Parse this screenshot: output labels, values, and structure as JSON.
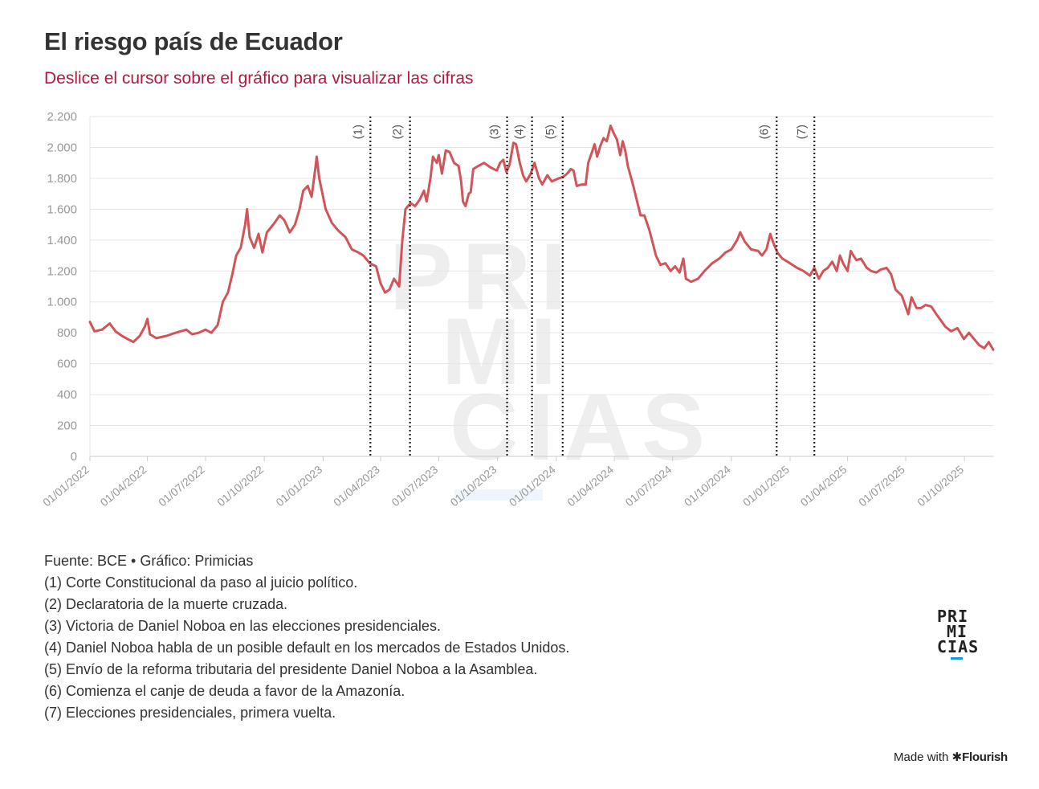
{
  "title": "El riesgo país de Ecuador",
  "subtitle": "Deslice el cursor sobre el gráfico para visualizar las cifras",
  "colors": {
    "line": "#d0545a",
    "subtitle": "#b5183f",
    "accent": "#1e9ad6",
    "grid": "#e6e6e6",
    "watermark": "#eeeeee"
  },
  "watermark": [
    "PRI",
    "MI",
    "CIAS"
  ],
  "chart_data": {
    "type": "line",
    "title": "El riesgo país de Ecuador",
    "xlabel": "",
    "ylabel": "",
    "ylim": [
      0,
      2200
    ],
    "xlim": [
      "2022-01-01",
      "2025-11-15"
    ],
    "y_ticks": [
      0,
      200,
      400,
      600,
      800,
      1000,
      1200,
      1400,
      1600,
      1800,
      2000,
      2200
    ],
    "y_tick_labels": [
      "0",
      "200",
      "400",
      "600",
      "800",
      "1.000",
      "1.200",
      "1.400",
      "1.600",
      "1.800",
      "2.000",
      "2.200"
    ],
    "x_ticks": [
      "2022-01-01",
      "2022-04-01",
      "2022-07-01",
      "2022-10-01",
      "2023-01-01",
      "2023-04-01",
      "2023-07-01",
      "2023-10-01",
      "2024-01-01",
      "2024-04-01",
      "2024-07-01",
      "2024-10-01",
      "2025-01-01",
      "2025-04-01",
      "2025-07-01",
      "2025-10-01"
    ],
    "x_tick_labels": [
      "01/01/2022",
      "01/04/2022",
      "01/07/2022",
      "01/10/2022",
      "01/01/2023",
      "01/04/2023",
      "01/07/2023",
      "01/10/2023",
      "01/01/2024",
      "01/04/2024",
      "01/07/2024",
      "01/10/2024",
      "01/01/2025",
      "01/04/2025",
      "01/07/2025",
      "01/10/2025"
    ],
    "grid": true,
    "legend": "none",
    "series": [
      {
        "name": "Riesgo país",
        "points": [
          [
            "2022-01-01",
            870
          ],
          [
            "2022-01-08",
            810
          ],
          [
            "2022-01-20",
            820
          ],
          [
            "2022-02-01",
            860
          ],
          [
            "2022-02-10",
            810
          ],
          [
            "2022-02-20",
            780
          ],
          [
            "2022-03-01",
            760
          ],
          [
            "2022-03-10",
            740
          ],
          [
            "2022-03-20",
            780
          ],
          [
            "2022-03-28",
            840
          ],
          [
            "2022-04-01",
            890
          ],
          [
            "2022-04-05",
            790
          ],
          [
            "2022-04-15",
            765
          ],
          [
            "2022-05-01",
            780
          ],
          [
            "2022-05-15",
            800
          ],
          [
            "2022-06-01",
            820
          ],
          [
            "2022-06-10",
            790
          ],
          [
            "2022-06-20",
            800
          ],
          [
            "2022-07-01",
            820
          ],
          [
            "2022-07-10",
            800
          ],
          [
            "2022-07-20",
            850
          ],
          [
            "2022-07-28",
            1000
          ],
          [
            "2022-08-05",
            1060
          ],
          [
            "2022-08-12",
            1180
          ],
          [
            "2022-08-18",
            1300
          ],
          [
            "2022-08-25",
            1350
          ],
          [
            "2022-09-01",
            1500
          ],
          [
            "2022-09-04",
            1600
          ],
          [
            "2022-09-08",
            1420
          ],
          [
            "2022-09-15",
            1350
          ],
          [
            "2022-09-22",
            1440
          ],
          [
            "2022-09-28",
            1320
          ],
          [
            "2022-10-05",
            1450
          ],
          [
            "2022-10-15",
            1500
          ],
          [
            "2022-10-25",
            1560
          ],
          [
            "2022-11-01",
            1530
          ],
          [
            "2022-11-10",
            1450
          ],
          [
            "2022-11-18",
            1500
          ],
          [
            "2022-11-25",
            1600
          ],
          [
            "2022-12-01",
            1720
          ],
          [
            "2022-12-08",
            1750
          ],
          [
            "2022-12-14",
            1680
          ],
          [
            "2022-12-20",
            1870
          ],
          [
            "2022-12-22",
            1940
          ],
          [
            "2022-12-26",
            1800
          ],
          [
            "2023-01-05",
            1600
          ],
          [
            "2023-01-15",
            1510
          ],
          [
            "2023-01-25",
            1460
          ],
          [
            "2023-02-05",
            1420
          ],
          [
            "2023-02-15",
            1340
          ],
          [
            "2023-02-25",
            1320
          ],
          [
            "2023-03-05",
            1300
          ],
          [
            "2023-03-15",
            1250
          ],
          [
            "2023-03-25",
            1230
          ],
          [
            "2023-04-01",
            1120
          ],
          [
            "2023-04-08",
            1060
          ],
          [
            "2023-04-15",
            1080
          ],
          [
            "2023-04-22",
            1150
          ],
          [
            "2023-04-30",
            1100
          ],
          [
            "2023-05-05",
            1400
          ],
          [
            "2023-05-10",
            1600
          ],
          [
            "2023-05-18",
            1640
          ],
          [
            "2023-05-25",
            1620
          ],
          [
            "2023-06-01",
            1660
          ],
          [
            "2023-06-08",
            1720
          ],
          [
            "2023-06-12",
            1650
          ],
          [
            "2023-06-18",
            1800
          ],
          [
            "2023-06-22",
            1940
          ],
          [
            "2023-06-28",
            1900
          ],
          [
            "2023-07-01",
            1950
          ],
          [
            "2023-07-06",
            1830
          ],
          [
            "2023-07-12",
            1980
          ],
          [
            "2023-07-18",
            1970
          ],
          [
            "2023-07-25",
            1900
          ],
          [
            "2023-08-01",
            1880
          ],
          [
            "2023-08-05",
            1780
          ],
          [
            "2023-08-08",
            1650
          ],
          [
            "2023-08-12",
            1620
          ],
          [
            "2023-08-17",
            1700
          ],
          [
            "2023-08-20",
            1710
          ],
          [
            "2023-08-24",
            1860
          ],
          [
            "2023-09-01",
            1880
          ],
          [
            "2023-09-10",
            1900
          ],
          [
            "2023-09-20",
            1870
          ],
          [
            "2023-09-30",
            1850
          ],
          [
            "2023-10-05",
            1900
          ],
          [
            "2023-10-10",
            1920
          ],
          [
            "2023-10-15",
            1840
          ],
          [
            "2023-10-20",
            1890
          ],
          [
            "2023-10-26",
            2030
          ],
          [
            "2023-10-30",
            2020
          ],
          [
            "2023-11-05",
            1900
          ],
          [
            "2023-11-10",
            1820
          ],
          [
            "2023-11-15",
            1780
          ],
          [
            "2023-11-22",
            1830
          ],
          [
            "2023-11-28",
            1900
          ],
          [
            "2023-12-05",
            1800
          ],
          [
            "2023-12-10",
            1760
          ],
          [
            "2023-12-18",
            1820
          ],
          [
            "2023-12-25",
            1780
          ],
          [
            "2024-01-05",
            1800
          ],
          [
            "2024-01-12",
            1810
          ],
          [
            "2024-01-18",
            1830
          ],
          [
            "2024-01-24",
            1860
          ],
          [
            "2024-01-28",
            1850
          ],
          [
            "2024-02-02",
            1750
          ],
          [
            "2024-02-10",
            1760
          ],
          [
            "2024-02-16",
            1760
          ],
          [
            "2024-02-20",
            1900
          ],
          [
            "2024-02-25",
            1960
          ],
          [
            "2024-03-01",
            2020
          ],
          [
            "2024-03-05",
            1940
          ],
          [
            "2024-03-10",
            2010
          ],
          [
            "2024-03-15",
            2060
          ],
          [
            "2024-03-20",
            2040
          ],
          [
            "2024-03-26",
            2140
          ],
          [
            "2024-03-30",
            2100
          ],
          [
            "2024-04-05",
            2050
          ],
          [
            "2024-04-10",
            1950
          ],
          [
            "2024-04-14",
            2040
          ],
          [
            "2024-04-18",
            1980
          ],
          [
            "2024-04-22",
            1880
          ],
          [
            "2024-04-30",
            1760
          ],
          [
            "2024-05-06",
            1660
          ],
          [
            "2024-05-12",
            1560
          ],
          [
            "2024-05-18",
            1560
          ],
          [
            "2024-05-26",
            1460
          ],
          [
            "2024-06-05",
            1300
          ],
          [
            "2024-06-12",
            1240
          ],
          [
            "2024-06-20",
            1250
          ],
          [
            "2024-06-28",
            1200
          ],
          [
            "2024-07-05",
            1230
          ],
          [
            "2024-07-12",
            1190
          ],
          [
            "2024-07-18",
            1280
          ],
          [
            "2024-07-22",
            1150
          ],
          [
            "2024-07-30",
            1130
          ],
          [
            "2024-08-10",
            1150
          ],
          [
            "2024-08-20",
            1200
          ],
          [
            "2024-09-01",
            1250
          ],
          [
            "2024-09-12",
            1280
          ],
          [
            "2024-09-22",
            1320
          ],
          [
            "2024-10-01",
            1340
          ],
          [
            "2024-10-10",
            1400
          ],
          [
            "2024-10-15",
            1450
          ],
          [
            "2024-10-22",
            1390
          ],
          [
            "2024-11-01",
            1340
          ],
          [
            "2024-11-12",
            1330
          ],
          [
            "2024-11-18",
            1300
          ],
          [
            "2024-11-25",
            1340
          ],
          [
            "2024-12-01",
            1440
          ],
          [
            "2024-12-06",
            1380
          ],
          [
            "2024-12-12",
            1320
          ],
          [
            "2024-12-20",
            1280
          ],
          [
            "2025-01-01",
            1250
          ],
          [
            "2025-01-12",
            1220
          ],
          [
            "2025-01-22",
            1200
          ],
          [
            "2025-02-01",
            1170
          ],
          [
            "2025-02-08",
            1220
          ],
          [
            "2025-02-15",
            1150
          ],
          [
            "2025-02-22",
            1200
          ],
          [
            "2025-03-01",
            1220
          ],
          [
            "2025-03-08",
            1260
          ],
          [
            "2025-03-15",
            1200
          ],
          [
            "2025-03-20",
            1300
          ],
          [
            "2025-03-25",
            1250
          ],
          [
            "2025-04-01",
            1200
          ],
          [
            "2025-04-06",
            1330
          ],
          [
            "2025-04-10",
            1300
          ],
          [
            "2025-04-15",
            1270
          ],
          [
            "2025-04-22",
            1280
          ],
          [
            "2025-05-01",
            1220
          ],
          [
            "2025-05-08",
            1200
          ],
          [
            "2025-05-16",
            1190
          ],
          [
            "2025-05-23",
            1210
          ],
          [
            "2025-06-01",
            1220
          ],
          [
            "2025-06-08",
            1180
          ],
          [
            "2025-06-15",
            1080
          ],
          [
            "2025-06-25",
            1040
          ],
          [
            "2025-07-05",
            920
          ],
          [
            "2025-07-10",
            1030
          ],
          [
            "2025-07-18",
            960
          ],
          [
            "2025-07-25",
            960
          ],
          [
            "2025-08-01",
            980
          ],
          [
            "2025-08-10",
            970
          ],
          [
            "2025-08-18",
            920
          ],
          [
            "2025-08-25",
            880
          ],
          [
            "2025-09-01",
            840
          ],
          [
            "2025-09-10",
            810
          ],
          [
            "2025-09-20",
            830
          ],
          [
            "2025-09-30",
            760
          ],
          [
            "2025-10-08",
            800
          ],
          [
            "2025-10-16",
            760
          ],
          [
            "2025-10-24",
            720
          ],
          [
            "2025-11-01",
            700
          ],
          [
            "2025-11-08",
            740
          ],
          [
            "2025-11-15",
            690
          ]
        ]
      }
    ],
    "events": [
      {
        "label": "(1)",
        "date": "2023-03-16"
      },
      {
        "label": "(2)",
        "date": "2023-05-17"
      },
      {
        "label": "(3)",
        "date": "2023-10-16"
      },
      {
        "label": "(4)",
        "date": "2023-11-24"
      },
      {
        "label": "(5)",
        "date": "2024-01-11"
      },
      {
        "label": "(6)",
        "date": "2024-12-11"
      },
      {
        "label": "(7)",
        "date": "2025-02-08"
      }
    ]
  },
  "notes": {
    "source": "Fuente: BCE • Gráfico: Primicias",
    "items": [
      "(1) Corte Constitucional da paso al juicio político.",
      "(2) Declaratoria de la muerte cruzada.",
      "(3) Victoria de Daniel Noboa en las elecciones presidenciales.",
      "(4) Daniel Noboa habla de un posible default en los mercados de Estados Unidos.",
      "(5) Envío de la reforma tributaria del presidente Daniel Noboa a la Asamblea.",
      "(6) Comienza el canje de deuda a favor de la Amazonía.",
      "(7) Elecciones presidenciales, primera vuelta."
    ]
  },
  "logo": [
    "PRI",
    "MI",
    "CIAS"
  ],
  "footer": {
    "made_with": "Made with",
    "brand": "Flourish",
    "brand_icon": "asterisk-icon"
  }
}
